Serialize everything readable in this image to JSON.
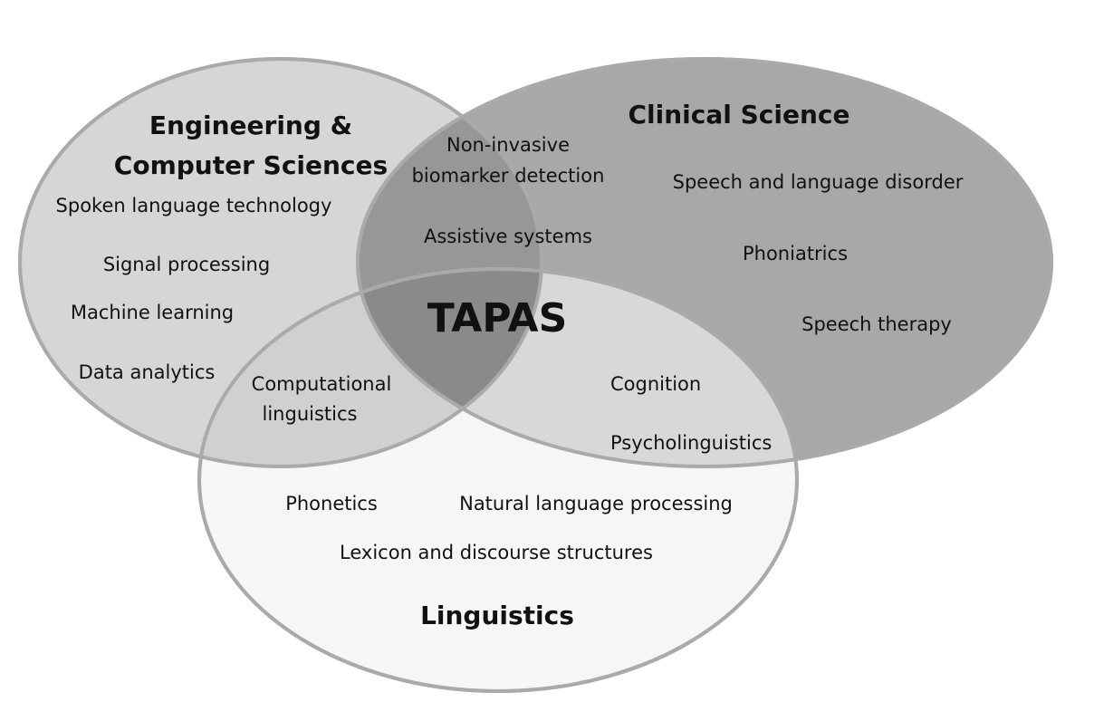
{
  "title": "TAPAS",
  "colors": {
    "engineering_fill": "#d6d6d6",
    "clinical_fill": "#a8a8a8",
    "linguistics_fill": "#f4f4f4",
    "outline": "#aaaaaa",
    "overlap_eng_clinical": "#979797",
    "overlap_eng_linguistics": "#d0d0d0",
    "overlap_clinical_linguistics": "#d8d8d8",
    "center_overlap": "#8a8a8a"
  },
  "engineering": {
    "heading_line1": "Engineering &",
    "heading_line2": "Computer Sciences",
    "items": [
      "Spoken language technology",
      "Signal processing",
      "Machine learning",
      "Data analytics"
    ]
  },
  "clinical": {
    "heading": "Clinical Science",
    "items": [
      "Speech and language disorder",
      "Phoniatrics",
      "Speech therapy"
    ]
  },
  "linguistics": {
    "heading": "Linguistics",
    "items": [
      "Phonetics",
      "Natural language processing",
      "Lexicon and discourse structures"
    ]
  },
  "overlaps": {
    "engineering_clinical": {
      "line1": "Non-invasive",
      "line2": "biomarker detection",
      "item2": "Assistive systems"
    },
    "engineering_linguistics": {
      "line1": "Computational",
      "line2": "linguistics"
    },
    "clinical_linguistics": {
      "item1": "Cognition",
      "item2": "Psycholinguistics"
    }
  }
}
